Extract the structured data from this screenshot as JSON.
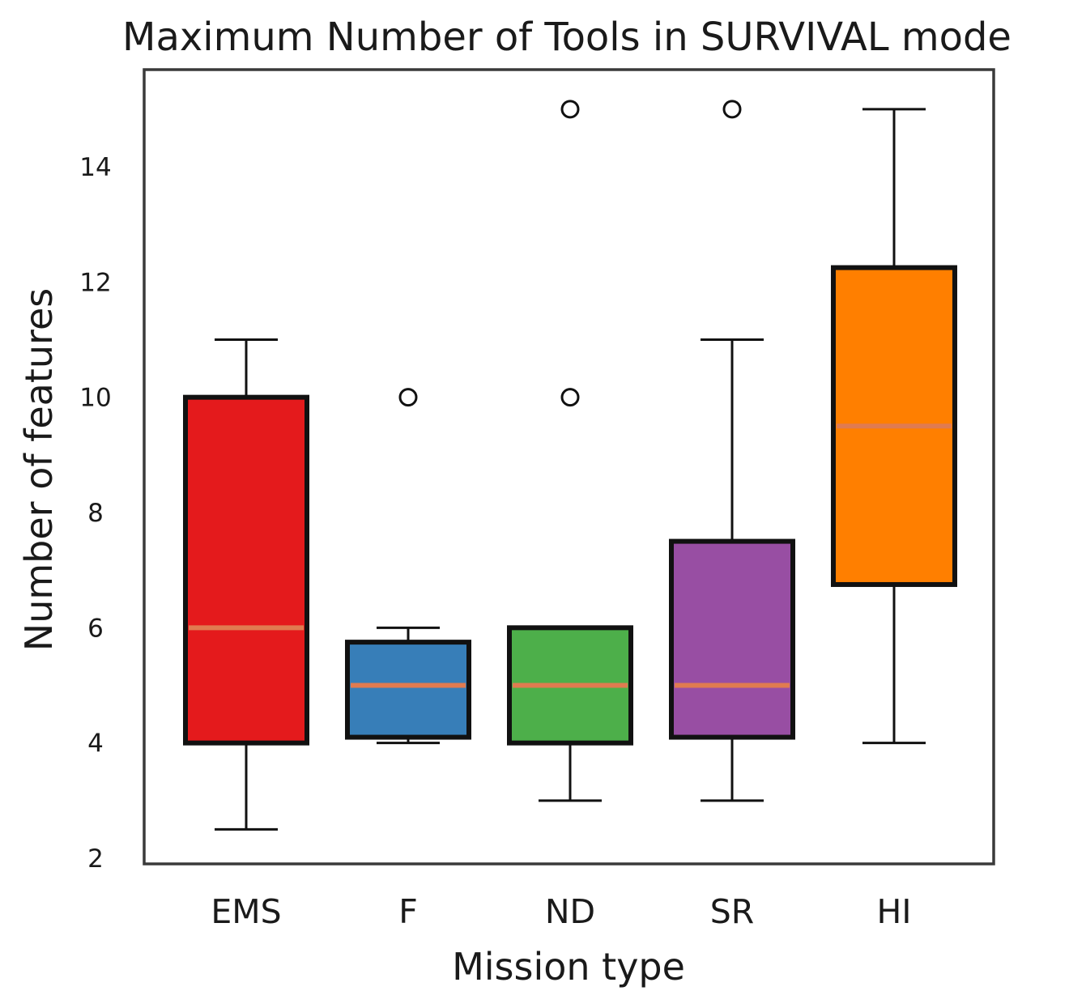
{
  "chart_data": {
    "type": "box",
    "title": "Maximum Number of Tools in SURVIVAL mode",
    "xlabel": "Mission type",
    "ylabel": "Number of features",
    "ylim": [
      2,
      15.7
    ],
    "yticks": [
      2,
      4,
      6,
      8,
      10,
      12,
      14
    ],
    "grid": false,
    "categories": [
      "EMS",
      "F",
      "ND",
      "SR",
      "HI"
    ],
    "boxes": [
      {
        "label": "EMS",
        "whisker_low": 2.5,
        "q1": 4.0,
        "median": 6.0,
        "q3": 10.0,
        "whisker_high": 11.0,
        "outliers": [],
        "color": "#e41a1c"
      },
      {
        "label": "F",
        "whisker_low": 4.0,
        "q1": 4.1,
        "median": 5.0,
        "q3": 5.75,
        "whisker_high": 6.0,
        "outliers": [
          10.0
        ],
        "color": "#377eb8"
      },
      {
        "label": "ND",
        "whisker_low": 3.0,
        "q1": 4.0,
        "median": 5.0,
        "q3": 6.0,
        "whisker_high": 6.0,
        "outliers": [
          10.0,
          15.0
        ],
        "color": "#4daf4a"
      },
      {
        "label": "SR",
        "whisker_low": 3.0,
        "q1": 4.1,
        "median": 5.0,
        "q3": 7.5,
        "whisker_high": 11.0,
        "outliers": [
          15.0
        ],
        "color": "#984ea3"
      },
      {
        "label": "HI",
        "whisker_low": 4.0,
        "q1": 6.75,
        "median": 9.5,
        "q3": 12.25,
        "whisker_high": 15.0,
        "outliers": [],
        "color": "#ff7f00"
      }
    ],
    "median_color": "#e07b50"
  }
}
